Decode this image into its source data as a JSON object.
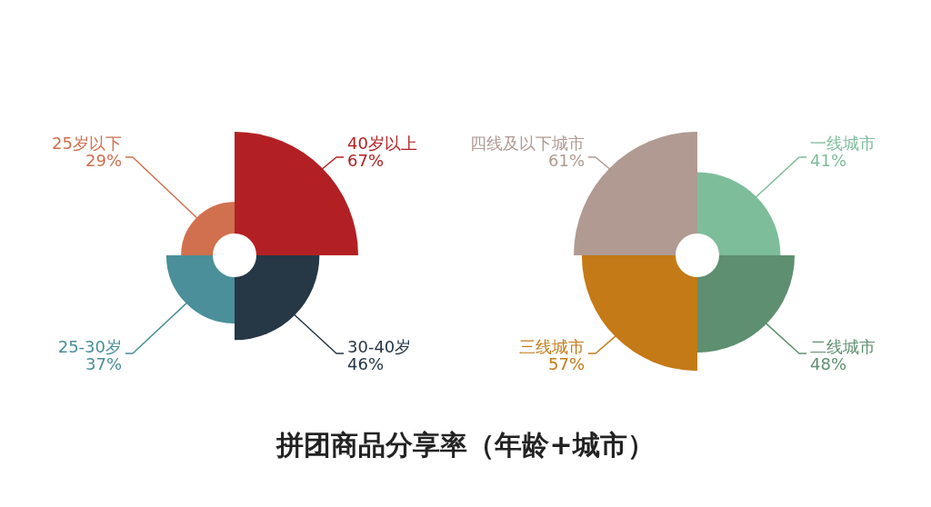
{
  "chart_data": [
    {
      "type": "other",
      "categories": [
        "40岁以上",
        "30-40岁",
        "25-30岁",
        "25岁以下"
      ],
      "values": [
        67,
        46,
        37,
        29
      ],
      "value_labels": [
        "67%",
        "46%",
        "37%",
        "29%"
      ],
      "colors": [
        "#b22024",
        "#263746",
        "#4a8f99",
        "#d0704f"
      ]
    },
    {
      "type": "other",
      "categories": [
        "一线城市",
        "二线城市",
        "三线城市",
        "四线及以下城市"
      ],
      "values": [
        41,
        48,
        57,
        61
      ],
      "value_labels": [
        "41%",
        "48%",
        "57%",
        "61%"
      ],
      "colors": [
        "#7dbd9a",
        "#5e8f70",
        "#c47a17",
        "#b09a92"
      ]
    },
    {
      "type": "other",
      "title": "拼团商品分享率（年龄+城市）"
    }
  ]
}
